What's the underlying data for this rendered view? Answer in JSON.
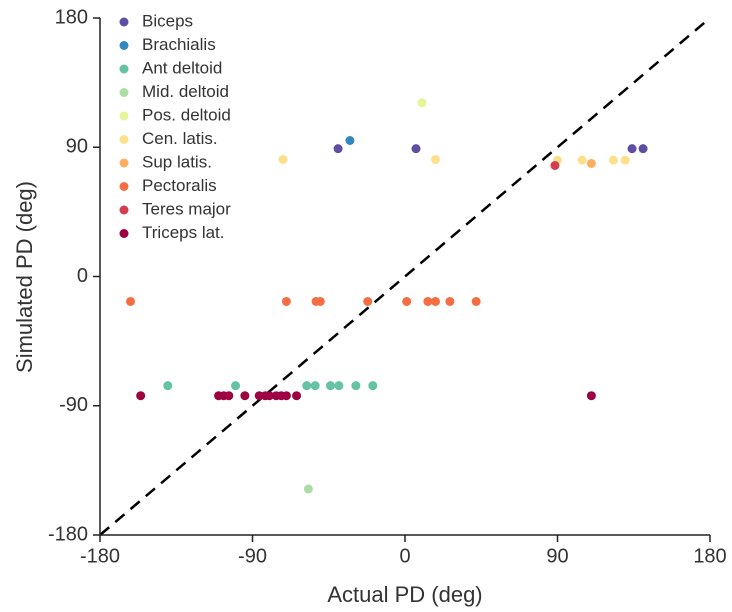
{
  "chart_data": {
    "type": "scatter",
    "xlabel": "Actual PD (deg)",
    "ylabel": "Simulated PD (deg)",
    "xlim": [
      -180,
      180
    ],
    "ylim": [
      -180,
      180
    ],
    "xticks": [
      -180,
      -90,
      0,
      90,
      180
    ],
    "yticks": [
      -180,
      -90,
      0,
      90,
      180
    ],
    "legend": "upper left",
    "series": [
      {
        "name": "Biceps",
        "color": "#5e4fa2",
        "x": [
          -39.5,
          6.5,
          134,
          140.5
        ],
        "values": [
          89,
          89,
          89,
          89
        ]
      },
      {
        "name": "Brachialis",
        "color": "#3288bd",
        "x": [
          -32.5
        ],
        "values": [
          94.7
        ]
      },
      {
        "name": "Ant deltoid",
        "color": "#66c2a5",
        "x": [
          -140,
          -100,
          -58,
          -53,
          -44,
          -39,
          -29,
          -19
        ],
        "values": [
          -76,
          -76,
          -76,
          -76,
          -76,
          -76,
          -76,
          -76
        ]
      },
      {
        "name": "Mid. deltoid",
        "color": "#abdda4",
        "x": [
          -57
        ],
        "values": [
          -148
        ]
      },
      {
        "name": "Pos. deltoid",
        "color": "#e6f598",
        "x": [
          10
        ],
        "values": [
          121
        ]
      },
      {
        "name": "Cen. latis.",
        "color": "#fee08b",
        "x": [
          -72,
          18,
          90,
          104.5,
          123,
          130
        ],
        "values": [
          81.5,
          81.5,
          81,
          81,
          81,
          81
        ]
      },
      {
        "name": "Sup latis.",
        "color": "#fdae61",
        "x": [
          110
        ],
        "values": [
          78.7
        ]
      },
      {
        "name": "Pectoralis",
        "color": "#f46d43",
        "x": [
          -162,
          -70,
          -52.5,
          -50,
          -22,
          1,
          13.5,
          18,
          26.5,
          42
        ],
        "values": [
          -17.4,
          -17.4,
          -17.4,
          -17.4,
          -17.4,
          -17.4,
          -17.4,
          -17.4,
          -17.4,
          -17.4
        ]
      },
      {
        "name": "Teres major",
        "color": "#d53e4f",
        "x": [
          88.5
        ],
        "values": [
          77.3
        ]
      },
      {
        "name": "Triceps lat.",
        "color": "#9e0142",
        "x": [
          -156,
          -110,
          -107,
          -104,
          -94.5,
          -86,
          -82.5,
          -80,
          -76,
          -73,
          -70,
          -64,
          110
        ],
        "values": [
          -83,
          -83,
          -83,
          -83,
          -83,
          -83,
          -83,
          -83,
          -83,
          -83,
          -83,
          -83,
          -83
        ]
      }
    ]
  }
}
